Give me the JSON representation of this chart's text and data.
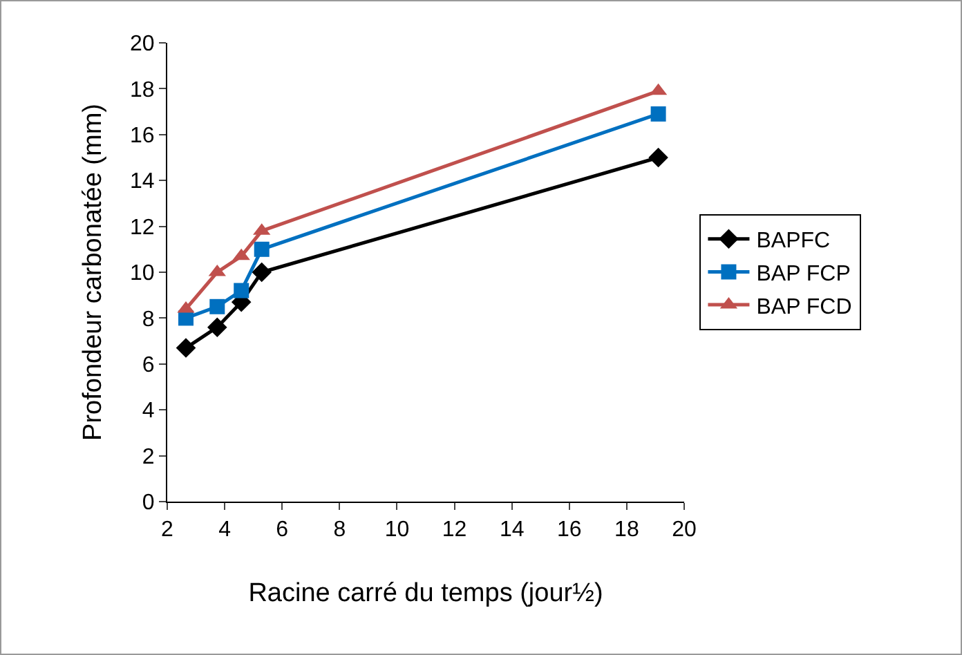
{
  "chart_data": {
    "type": "line",
    "xlabel": "Racine carré du temps (jour½)",
    "ylabel": "Profondeur carbonatée (mm)",
    "x": [
      2.65,
      3.74,
      4.58,
      5.29,
      19.1
    ],
    "series": [
      {
        "name": "BAPFC",
        "color": "#000000",
        "marker": "diamond",
        "values": [
          6.7,
          7.6,
          8.7,
          10,
          15
        ]
      },
      {
        "name": "BAP FCP",
        "color": "#0070c0",
        "marker": "square",
        "values": [
          8,
          8.5,
          9.2,
          11,
          16.9
        ]
      },
      {
        "name": "BAP FCD",
        "color": "#c0504d",
        "marker": "triangle",
        "values": [
          8.4,
          10,
          10.7,
          11.8,
          17.9
        ]
      }
    ],
    "xlim": [
      2,
      20
    ],
    "xticks": [
      2,
      4,
      6,
      8,
      10,
      12,
      14,
      16,
      18,
      20
    ],
    "ylim": [
      0,
      20
    ],
    "yticks": [
      0,
      2,
      4,
      6,
      8,
      10,
      12,
      14,
      16,
      18,
      20
    ],
    "grid": false,
    "legend": "right",
    "line_style": "solid"
  }
}
